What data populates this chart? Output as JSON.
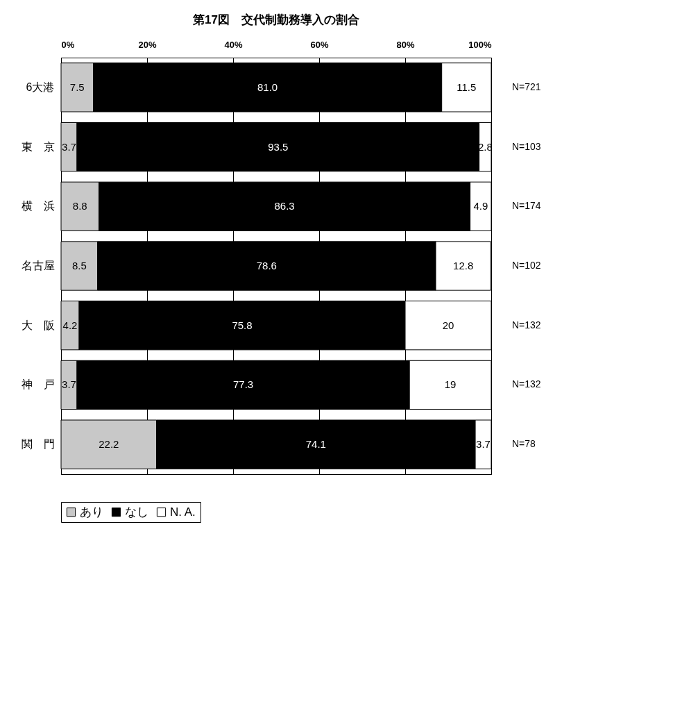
{
  "chart_data": {
    "type": "bar",
    "orientation": "horizontal",
    "stacked": true,
    "title": "第17図　交代制勤務導入の割合",
    "categories": [
      "6大港",
      "東　京",
      "横　浜",
      "名古屋",
      "大　阪",
      "神　戸",
      "関　門"
    ],
    "series": [
      {
        "name": "あり",
        "color": "#c8c8c8",
        "values": [
          7.5,
          3.7,
          8.8,
          8.5,
          4.2,
          3.7,
          22.2
        ],
        "value_labels": [
          "7.5",
          "3.7",
          "8.8",
          "8.5",
          "4.2",
          "3.7",
          "22.2"
        ]
      },
      {
        "name": "なし",
        "color": "#000000",
        "values": [
          81.0,
          93.5,
          86.3,
          78.6,
          75.8,
          77.3,
          74.1
        ],
        "value_labels": [
          "81.0",
          "93.5",
          "86.3",
          "78.6",
          "75.8",
          "77.3",
          "74.1"
        ]
      },
      {
        "name": "N. A.",
        "color": "#ffffff",
        "values": [
          11.5,
          2.8,
          4.9,
          12.8,
          20,
          19,
          3.7
        ],
        "value_labels": [
          "11.5",
          "2.8",
          "4.9",
          "12.8",
          "20",
          "19",
          "3.7"
        ]
      }
    ],
    "xlim": [
      0,
      100
    ],
    "xticks": [
      {
        "value": 0,
        "label": "0%"
      },
      {
        "value": 20,
        "label": "20%"
      },
      {
        "value": 40,
        "label": "40%"
      },
      {
        "value": 60,
        "label": "60%"
      },
      {
        "value": 80,
        "label": "80%"
      },
      {
        "value": 100,
        "label": "100%"
      }
    ],
    "grid": "x",
    "legend": "bottom",
    "annotations": [
      "N=721",
      "N=103",
      "N=174",
      "N=102",
      "N=132",
      "N=132",
      "N=78"
    ]
  }
}
